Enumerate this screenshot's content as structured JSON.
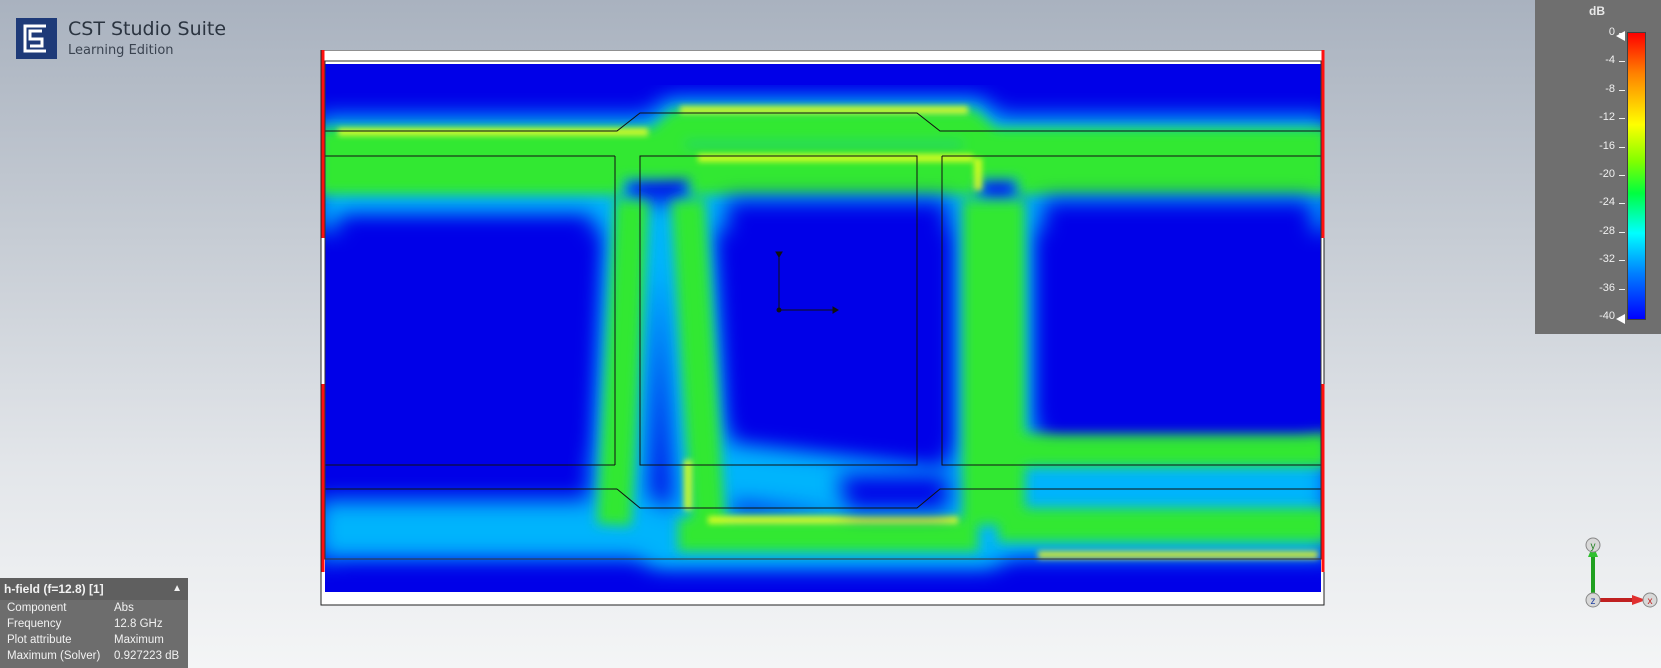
{
  "app": {
    "title": "CST Studio Suite",
    "subtitle": "Learning Edition",
    "logo_icon": "cst-logo-icon"
  },
  "legend": {
    "unit": "dB",
    "ticks": [
      "0",
      "-4",
      "-8",
      "-12",
      "-16",
      "-20",
      "-24",
      "-28",
      "-32",
      "-36",
      "-40"
    ],
    "colormap": [
      "#ff0000",
      "#ff8000",
      "#ffff00",
      "#80ff00",
      "#00ff40",
      "#00ffff",
      "#0080ff",
      "#0000ff"
    ]
  },
  "info_panel": {
    "title": "h-field (f=12.8) [1]",
    "rows": [
      {
        "key": "Component",
        "value": "Abs"
      },
      {
        "key": "Frequency",
        "value": "12.8 GHz"
      },
      {
        "key": "Plot attribute",
        "value": "Maximum"
      },
      {
        "key": "Maximum (Solver)",
        "value": "0.927223 dB"
      }
    ]
  },
  "axes_triad": {
    "y": "y",
    "z": "z",
    "x": "x"
  },
  "colors": {
    "background_field": "#0000e8",
    "field_peak": "#ffff00",
    "boundary": "#ff0000"
  }
}
